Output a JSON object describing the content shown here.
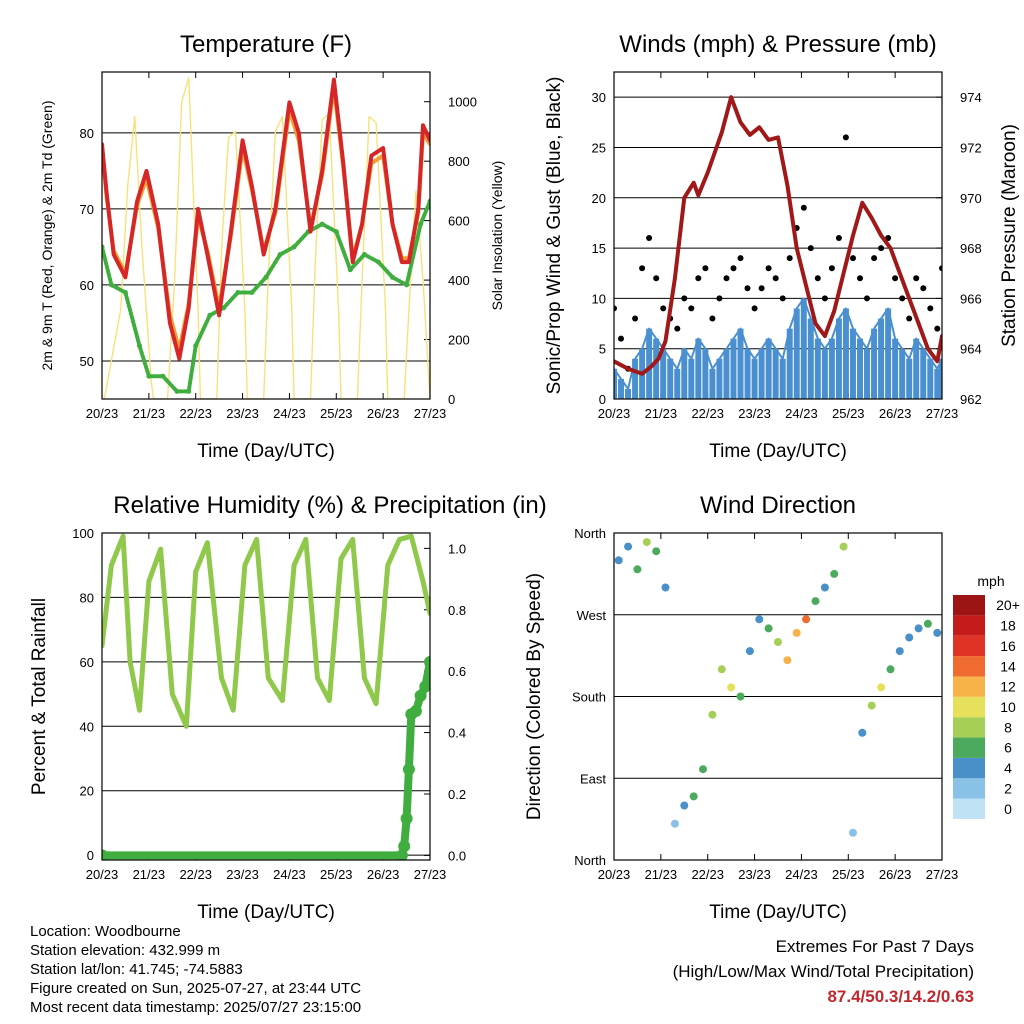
{
  "station": {
    "location_line": "Location: Woodbourne",
    "elevation_line": "Station elevation: 432.999 m",
    "latlon_line": "Station lat/lon: 41.745; -74.5883",
    "created_line": "Figure created on Sun, 2025-07-27, at 23:44 UTC",
    "recent_line": "Most recent data timestamp: 2025/07/27 23:15:00"
  },
  "extremes": {
    "title": "Extremes For Past 7 Days",
    "subtitle": "(High/Low/Max Wind/Total Precipitation)",
    "values": "87.4/50.3/14.2/0.63",
    "value_color": "#c0282d"
  },
  "colors": {
    "temp_2m": "#d62728",
    "temp_9m": "#f39c34",
    "dewpoint": "#3fae3f",
    "solar": "#f7e27a",
    "wind_sonic": "#4a90d0",
    "gust": "#000000",
    "pressure": "#a01818",
    "rh": "#8fc84a",
    "precip": "#3fae3f"
  },
  "chart_data": [
    {
      "type": "line",
      "title": "Temperature (F)",
      "xlabel": "Time (Day/UTC)",
      "ylabel": "2m & 9m T (Red, Orange) & 2m Td (Green)",
      "ylabel_right": "Solar Insolation (Yellow)",
      "x_ticks": [
        "20/23",
        "21/23",
        "22/23",
        "23/23",
        "24/23",
        "25/23",
        "26/23",
        "27/23"
      ],
      "xlim": [
        0,
        7
      ],
      "ylim": [
        45,
        88
      ],
      "y_ticks": [
        50,
        60,
        70,
        80
      ],
      "ylim_right": [
        0,
        1100
      ],
      "y_ticks_right": [
        0,
        200,
        400,
        600,
        800,
        1000
      ],
      "grid": true,
      "series": [
        {
          "key": "temp2m",
          "x": [
            0,
            0.1,
            0.25,
            0.5,
            0.75,
            0.95,
            1.2,
            1.45,
            1.65,
            1.85,
            2.05,
            2.25,
            2.5,
            2.75,
            3.0,
            3.2,
            3.45,
            3.7,
            4.0,
            4.2,
            4.45,
            4.7,
            4.95,
            5.15,
            5.35,
            5.55,
            5.75,
            6.0,
            6.2,
            6.4,
            6.55,
            6.75,
            6.85,
            7.0
          ],
          "y": [
            78.5,
            72,
            64,
            61,
            71,
            75,
            68,
            55,
            50.3,
            57,
            70,
            64,
            56,
            67,
            79,
            73,
            64,
            70,
            84,
            80,
            67,
            75,
            87,
            76,
            63,
            68,
            77,
            78,
            68,
            63,
            63,
            70,
            81,
            79
          ]
        },
        {
          "key": "temp9m",
          "x": [
            0,
            0.1,
            0.25,
            0.5,
            0.75,
            0.95,
            1.2,
            1.45,
            1.65,
            1.85,
            2.05,
            2.25,
            2.5,
            2.75,
            3.0,
            3.2,
            3.45,
            3.7,
            4.0,
            4.2,
            4.45,
            4.7,
            4.95,
            5.15,
            5.35,
            5.55,
            5.75,
            6.0,
            6.2,
            6.4,
            6.55,
            6.75,
            6.85,
            7.0
          ],
          "y": [
            78,
            71.5,
            64.5,
            61.5,
            70.5,
            74,
            67.5,
            56,
            51.5,
            57.5,
            69,
            64.5,
            57,
            66.5,
            78,
            72.5,
            64.5,
            69.5,
            83,
            79,
            67.5,
            74.5,
            86,
            75.5,
            63.5,
            68,
            76,
            77,
            68,
            63.5,
            63.5,
            69.5,
            80,
            78.5
          ]
        },
        {
          "key": "dewpoint",
          "x": [
            0,
            0.2,
            0.5,
            0.8,
            1.0,
            1.3,
            1.6,
            1.85,
            2.0,
            2.3,
            2.6,
            2.9,
            3.2,
            3.5,
            3.8,
            4.1,
            4.4,
            4.7,
            5.0,
            5.3,
            5.6,
            5.9,
            6.2,
            6.5,
            6.8,
            7.0
          ],
          "y": [
            65,
            60,
            59,
            52,
            48,
            48,
            46,
            46,
            52,
            56,
            57,
            59,
            59,
            61,
            64,
            65,
            67,
            68,
            67,
            62,
            64,
            63,
            61,
            60,
            68,
            71
          ]
        },
        {
          "key": "solar",
          "x": [
            0,
            0.05,
            0.4,
            0.55,
            0.7,
            0.85,
            1.05,
            1.1,
            1.4,
            1.55,
            1.7,
            1.85,
            2.05,
            2.1,
            2.45,
            2.55,
            2.7,
            2.85,
            3.05,
            3.1,
            3.45,
            3.55,
            3.7,
            3.85,
            4.05,
            4.1,
            4.45,
            4.55,
            4.7,
            4.85,
            5.05,
            5.1,
            5.45,
            5.55,
            5.7,
            5.85,
            6.05,
            6.1,
            6.45,
            6.55,
            6.7,
            6.85,
            7.0
          ],
          "y": [
            0,
            0,
            300,
            720,
            950,
            520,
            60,
            0,
            0,
            400,
            1000,
            1080,
            300,
            0,
            0,
            500,
            880,
            900,
            300,
            0,
            0,
            420,
            900,
            950,
            300,
            0,
            0,
            450,
            940,
            960,
            300,
            0,
            0,
            400,
            950,
            930,
            300,
            0,
            0,
            300,
            700,
            400,
            0
          ]
        }
      ]
    },
    {
      "type": "line",
      "title": "Winds (mph) & Pressure (mb)",
      "xlabel": "Time (Day/UTC)",
      "ylabel": "Sonic/Prop Wind & Gust (Blue, Black)",
      "ylabel_right": "Station Pressure (Maroon)",
      "x_ticks": [
        "20/23",
        "21/23",
        "22/23",
        "23/23",
        "24/23",
        "25/23",
        "26/23",
        "27/23"
      ],
      "xlim": [
        0,
        7
      ],
      "ylim": [
        0,
        32.5
      ],
      "y_ticks": [
        0,
        5,
        10,
        15,
        20,
        25,
        30
      ],
      "ylim_right": [
        962,
        975
      ],
      "y_ticks_right": [
        962,
        964,
        966,
        968,
        970,
        972,
        974
      ],
      "grid": true,
      "series": [
        {
          "key": "wind",
          "x": [
            0,
            0.15,
            0.3,
            0.45,
            0.6,
            0.75,
            0.9,
            1.05,
            1.2,
            1.35,
            1.5,
            1.65,
            1.8,
            1.95,
            2.1,
            2.25,
            2.4,
            2.55,
            2.7,
            2.85,
            3.0,
            3.15,
            3.3,
            3.45,
            3.6,
            3.75,
            3.9,
            4.05,
            4.2,
            4.35,
            4.5,
            4.65,
            4.8,
            4.95,
            5.1,
            5.25,
            5.4,
            5.55,
            5.7,
            5.85,
            6.0,
            6.15,
            6.3,
            6.45,
            6.6,
            6.75,
            6.9,
            7.0
          ],
          "y": [
            3,
            2,
            1,
            4,
            5,
            7,
            6,
            5,
            4,
            3,
            5,
            4,
            6,
            5,
            3,
            4,
            5,
            6,
            7,
            5,
            4,
            5,
            6,
            5,
            4,
            7,
            9,
            10,
            8,
            6,
            5,
            6,
            8,
            9,
            7,
            6,
            5,
            7,
            8,
            9,
            6,
            5,
            4,
            6,
            5,
            4,
            3,
            4
          ]
        },
        {
          "key": "gust",
          "x": [
            0,
            0.15,
            0.3,
            0.45,
            0.6,
            0.75,
            0.9,
            1.05,
            1.2,
            1.35,
            1.5,
            1.65,
            1.8,
            1.95,
            2.1,
            2.25,
            2.4,
            2.55,
            2.7,
            2.85,
            3.0,
            3.15,
            3.3,
            3.45,
            3.6,
            3.75,
            3.9,
            4.05,
            4.2,
            4.35,
            4.5,
            4.65,
            4.8,
            4.95,
            5.1,
            5.25,
            5.4,
            5.55,
            5.7,
            5.85,
            6.0,
            6.15,
            6.3,
            6.45,
            6.6,
            6.75,
            6.9,
            7.0
          ],
          "y": [
            9,
            6,
            3,
            8,
            13,
            16,
            12,
            9,
            8,
            7,
            10,
            9,
            12,
            13,
            8,
            10,
            12,
            13,
            14,
            11,
            9,
            11,
            13,
            12,
            10,
            14,
            17,
            19,
            15,
            12,
            10,
            13,
            16,
            26,
            14,
            12,
            10,
            14,
            15,
            16,
            12,
            10,
            8,
            12,
            11,
            9,
            7,
            13
          ]
        },
        {
          "key": "pressure",
          "x": [
            0,
            0.3,
            0.6,
            0.8,
            0.95,
            1.1,
            1.3,
            1.5,
            1.7,
            1.8,
            2.0,
            2.3,
            2.5,
            2.7,
            2.9,
            3.1,
            3.3,
            3.5,
            3.7,
            3.9,
            4.1,
            4.3,
            4.5,
            4.7,
            4.9,
            5.1,
            5.3,
            5.5,
            5.7,
            5.9,
            6.1,
            6.3,
            6.5,
            6.7,
            6.9,
            7.0
          ],
          "y": [
            963.5,
            963.2,
            963.0,
            963.3,
            963.6,
            964.3,
            966.8,
            970.0,
            970.6,
            970.1,
            971.0,
            972.6,
            974.0,
            973.0,
            972.5,
            972.8,
            972.3,
            972.4,
            970.5,
            968.0,
            966.5,
            965.0,
            964.5,
            965.5,
            967.0,
            968.5,
            969.8,
            969.2,
            968.5,
            968.0,
            967.0,
            966.0,
            965.0,
            964.0,
            963.5,
            964.5
          ]
        }
      ]
    },
    {
      "type": "line",
      "title": "Relative Humidity (%) & Precipitation (in)",
      "xlabel": "Time (Day/UTC)",
      "ylabel": "Percent & Total Rainfall",
      "x_ticks": [
        "20/23",
        "21/23",
        "22/23",
        "23/23",
        "24/23",
        "25/23",
        "26/23",
        "27/23"
      ],
      "xlim": [
        0,
        7
      ],
      "ylim": [
        -1.5,
        100
      ],
      "y_ticks": [
        0,
        20,
        40,
        60,
        80,
        100
      ],
      "ylim_right": [
        -0.015,
        1.05
      ],
      "y_ticks_right": [
        "0.0",
        "0.2",
        "0.4",
        "0.6",
        "0.8",
        "1.0"
      ],
      "grid": true,
      "series": [
        {
          "key": "rh",
          "x": [
            0,
            0.2,
            0.45,
            0.6,
            0.8,
            1.0,
            1.25,
            1.5,
            1.8,
            2.0,
            2.25,
            2.55,
            2.8,
            3.05,
            3.3,
            3.55,
            3.85,
            4.1,
            4.35,
            4.6,
            4.85,
            5.1,
            5.35,
            5.6,
            5.85,
            6.1,
            6.35,
            6.6,
            6.85,
            7.0
          ],
          "y": [
            65,
            90,
            99,
            60,
            45,
            85,
            95,
            50,
            40,
            88,
            97,
            55,
            45,
            90,
            98,
            55,
            48,
            90,
            98,
            55,
            48,
            92,
            98,
            55,
            47,
            90,
            98,
            99,
            85,
            75
          ]
        },
        {
          "key": "precip",
          "x": [
            0,
            6.4,
            6.45,
            6.5,
            6.55,
            6.6,
            6.7,
            6.8,
            6.9,
            7.0
          ],
          "y": [
            0,
            0,
            0.03,
            0.12,
            0.28,
            0.46,
            0.47,
            0.52,
            0.55,
            0.63
          ]
        }
      ]
    },
    {
      "type": "scatter",
      "title": "Wind Direction",
      "xlabel": "Time (Day/UTC)",
      "ylabel": "Direction (Colored By Speed)",
      "x_ticks": [
        "20/23",
        "21/23",
        "22/23",
        "23/23",
        "24/23",
        "25/23",
        "26/23",
        "27/23"
      ],
      "xlim": [
        0,
        7
      ],
      "y_ticks": [
        "North",
        "East",
        "South",
        "West",
        "North"
      ],
      "ylim": [
        0,
        360
      ],
      "grid": true,
      "colorbar": {
        "label": "mph",
        "levels": [
          "0",
          "2",
          "4",
          "6",
          "8",
          "10",
          "12",
          "14",
          "16",
          "18",
          "20+"
        ],
        "colors": [
          "#bfe3f5",
          "#89c2e6",
          "#4a90c8",
          "#4caa5e",
          "#a6cf58",
          "#e6e05a",
          "#f7b24a",
          "#f06b30",
          "#e03325",
          "#c51b1b",
          "#9c1414"
        ]
      },
      "series": [
        {
          "name": "direction",
          "x": [
            0.1,
            0.3,
            0.5,
            0.7,
            0.9,
            1.1,
            1.3,
            1.5,
            1.7,
            1.9,
            2.1,
            2.3,
            2.5,
            2.7,
            2.9,
            3.1,
            3.3,
            3.5,
            3.7,
            3.9,
            4.1,
            4.3,
            4.5,
            4.7,
            4.9,
            5.1,
            5.3,
            5.5,
            5.7,
            5.9,
            6.1,
            6.3,
            6.5,
            6.7,
            6.9
          ],
          "y": [
            330,
            345,
            320,
            350,
            340,
            300,
            40,
            60,
            70,
            100,
            160,
            210,
            190,
            180,
            230,
            265,
            255,
            240,
            220,
            250,
            265,
            285,
            300,
            315,
            345,
            30,
            140,
            170,
            190,
            210,
            230,
            245,
            255,
            260,
            250
          ],
          "speed": [
            4,
            3,
            6,
            7,
            5,
            3,
            2,
            4,
            6,
            5,
            7,
            8,
            9,
            6,
            4,
            3,
            5,
            8,
            11,
            12,
            14,
            6,
            3,
            5,
            7,
            2,
            4,
            8,
            10,
            6,
            3,
            3,
            4,
            5,
            4
          ]
        }
      ]
    }
  ]
}
